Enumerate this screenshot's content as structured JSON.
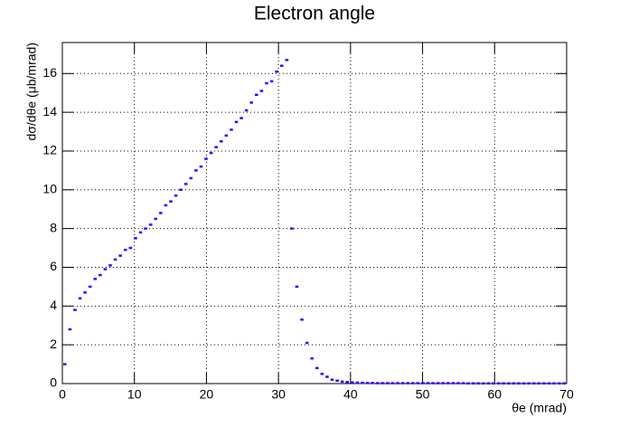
{
  "chart_data": {
    "type": "histogram",
    "title": "Electron angle",
    "x_label": "θe (mrad)",
    "y_label": "dσ/dθe (μb/mrad)",
    "bins": [
      0,
      0.7,
      1.4,
      2.1,
      2.8,
      3.5,
      4.2,
      4.9,
      5.6,
      6.3,
      7,
      7.7,
      8.4,
      9.1,
      9.8,
      10.5,
      11.2,
      11.9,
      12.6,
      13.3,
      14,
      14.7,
      15.4,
      16.1,
      16.8,
      17.5,
      18.2,
      18.9,
      19.6,
      20.3,
      21,
      21.7,
      22.4,
      23.1,
      23.8,
      24.5,
      25.2,
      25.9,
      26.6,
      27.3,
      28,
      28.7,
      29.4,
      30.1,
      30.8,
      31.5,
      32.2,
      32.9,
      33.6,
      34.3,
      35,
      35.7,
      36.4,
      37.1,
      37.8,
      38.5,
      39.2,
      39.9,
      40.6,
      41.3,
      42,
      42.7,
      43.4,
      44.1,
      44.8,
      45.5,
      46.2,
      46.9,
      47.6,
      48.3,
      49,
      49.7,
      50.4,
      51.1,
      51.8,
      52.5,
      53.2,
      53.9,
      54.6,
      55.3,
      56,
      56.7,
      57.4,
      58.1,
      58.8,
      59.5,
      60.2,
      60.9,
      61.6,
      62.3,
      63,
      63.7,
      64.4,
      65.1,
      65.8,
      66.5,
      67.2,
      67.9,
      68.6,
      69.3,
      70
    ],
    "values": [
      1.0,
      2.8,
      3.8,
      4.4,
      4.7,
      5.0,
      5.4,
      5.6,
      5.9,
      6.1,
      6.4,
      6.6,
      6.9,
      7.0,
      7.5,
      7.8,
      8.0,
      8.2,
      8.5,
      8.8,
      9.2,
      9.4,
      9.7,
      10.0,
      10.3,
      10.6,
      11.0,
      11.2,
      11.6,
      11.9,
      12.2,
      12.5,
      12.8,
      13.1,
      13.5,
      13.7,
      14.1,
      14.5,
      14.9,
      15.1,
      15.5,
      15.6,
      16.1,
      16.4,
      16.7,
      8.0,
      5.0,
      3.3,
      2.1,
      1.3,
      0.8,
      0.5,
      0.35,
      0.2,
      0.15,
      0.1,
      0.08,
      0.06,
      0.05,
      0.04,
      0.03,
      0.03,
      0.02,
      0.02,
      0.02,
      0.02,
      0.02,
      0.02,
      0.02,
      0.02,
      0.02,
      0.02,
      0.02,
      0.02,
      0.02,
      0.02,
      0.02,
      0.02,
      0.02,
      0.02,
      0.01,
      0.01,
      0.01,
      0.01,
      0.01,
      0.01,
      0.01,
      0.01,
      0.01,
      0.01,
      0.01,
      0.01,
      0.01,
      0.01,
      0.01,
      0.01,
      0.01,
      0.01,
      0.01,
      0.01
    ],
    "color": "#3f00ff",
    "xlim": [
      0,
      70
    ],
    "xticks": [
      0,
      10,
      20,
      30,
      40,
      50,
      60,
      70
    ],
    "ylim": [
      0,
      17.6
    ],
    "yticks": [
      0,
      2,
      4,
      6,
      8,
      10,
      12,
      14,
      16
    ],
    "grid": true
  }
}
